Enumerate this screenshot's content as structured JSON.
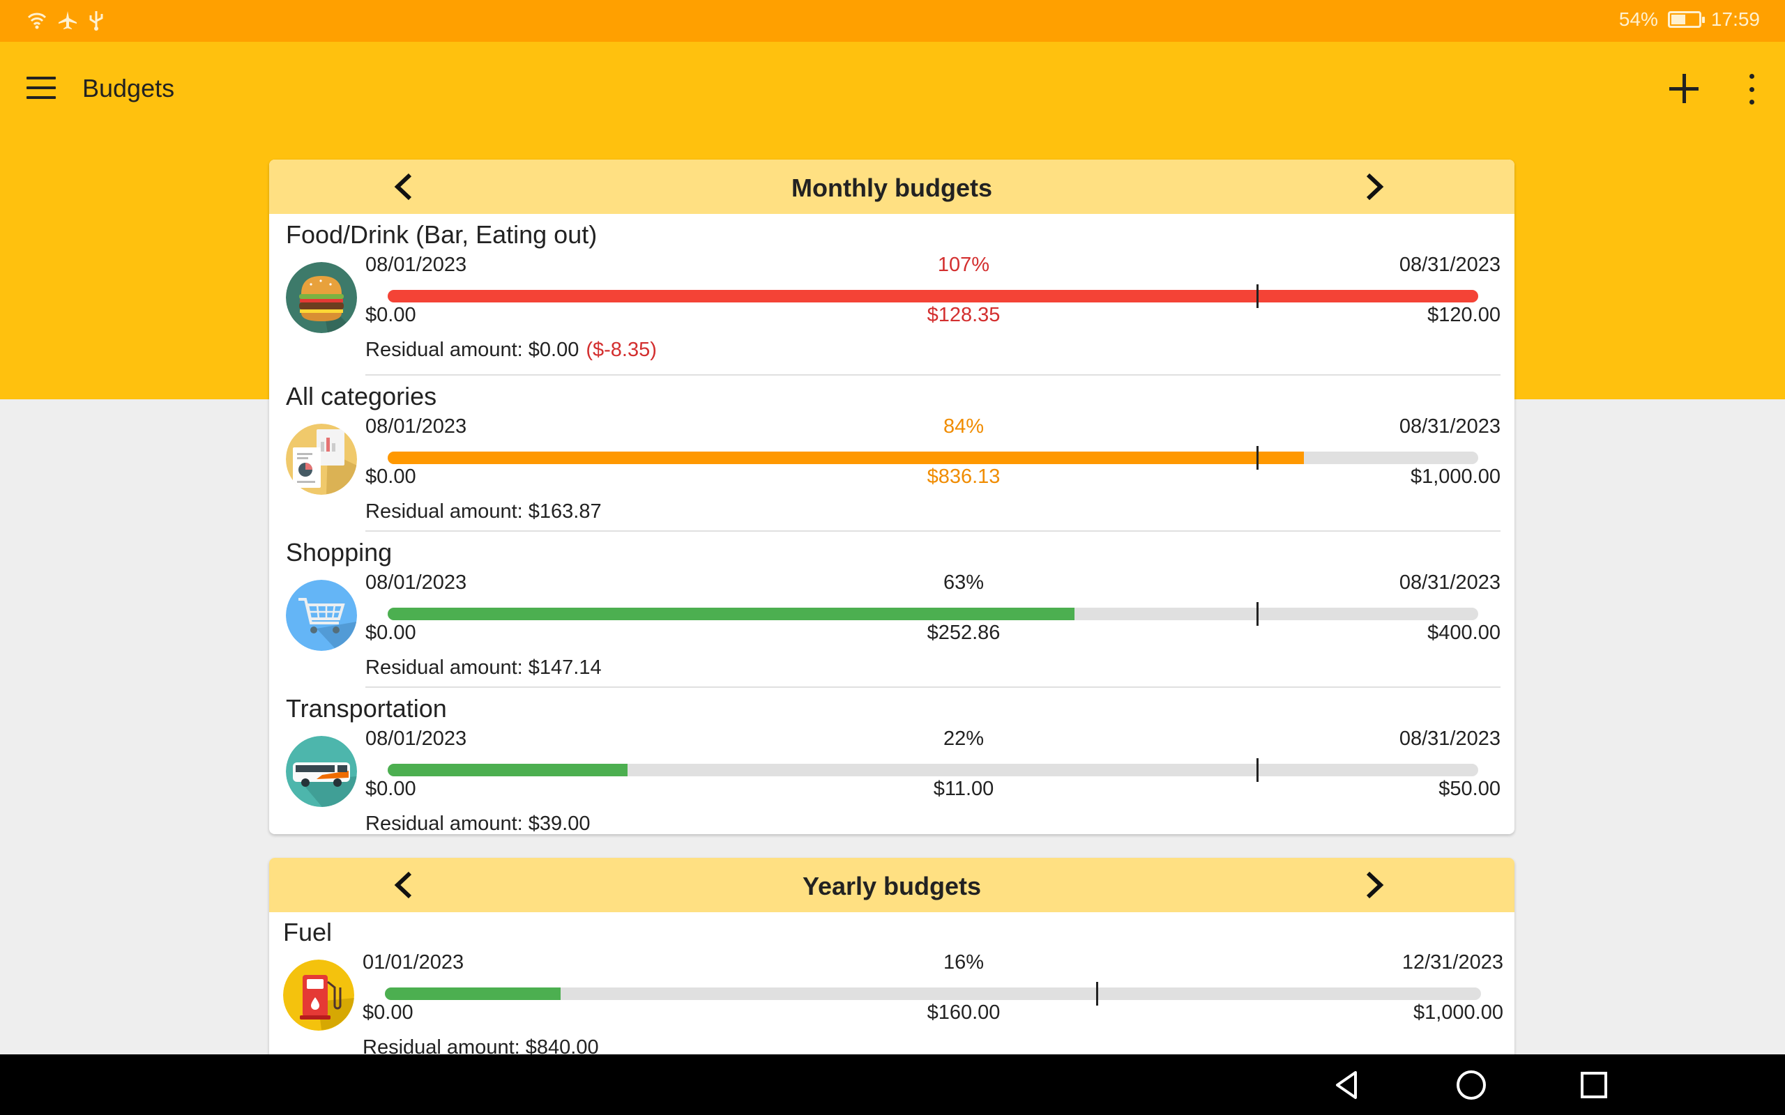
{
  "status_bar": {
    "battery_percent": "54%",
    "battery_level": 0.54,
    "time": "17:59",
    "icons": [
      "wifi-icon",
      "airplane-mode-icon",
      "usb-icon",
      "battery-charging-icon"
    ]
  },
  "app_bar": {
    "title": "Budgets",
    "icons": [
      "menu-icon",
      "add-icon",
      "more-vert-icon"
    ]
  },
  "colors": {
    "status_bar": "#ffa000",
    "app_bar": "#ffc10e",
    "card_header": "#ffe082",
    "over_budget": "#f44336",
    "warning": "#ff9800",
    "ok": "#4caf50",
    "over_text": "#d32f2f",
    "warning_text": "#f08c00"
  },
  "monthly": {
    "title": "Monthly budgets",
    "items": [
      {
        "name": "Food/Drink (Bar, Eating out)",
        "icon": "burger-icon",
        "start_date": "08/01/2023",
        "end_date": "08/31/2023",
        "percent": "107%",
        "progress": 1.0,
        "min": "$0.00",
        "spent": "$128.35",
        "max": "$120.00",
        "residual_label": "Residual amount:",
        "residual": "$0.00",
        "residual_over": "($-8.35)",
        "status": "over"
      },
      {
        "name": "All categories",
        "icon": "report-documents-icon",
        "start_date": "08/01/2023",
        "end_date": "08/31/2023",
        "percent": "84%",
        "progress": 0.84,
        "min": "$0.00",
        "spent": "$836.13",
        "max": "$1,000.00",
        "residual_label": "Residual amount:",
        "residual": "$163.87",
        "status": "warning"
      },
      {
        "name": "Shopping",
        "icon": "shopping-cart-icon",
        "start_date": "08/01/2023",
        "end_date": "08/31/2023",
        "percent": "63%",
        "progress": 0.63,
        "min": "$0.00",
        "spent": "$252.86",
        "max": "$400.00",
        "residual_label": "Residual amount:",
        "residual": "$147.14",
        "status": "ok"
      },
      {
        "name": "Transportation",
        "icon": "bus-icon",
        "start_date": "08/01/2023",
        "end_date": "08/31/2023",
        "percent": "22%",
        "progress": 0.22,
        "min": "$0.00",
        "spent": "$11.00",
        "max": "$50.00",
        "residual_label": "Residual amount:",
        "residual": "$39.00",
        "status": "ok"
      }
    ]
  },
  "yearly": {
    "title": "Yearly budgets",
    "items": [
      {
        "name": "Fuel",
        "icon": "fuel-pump-icon",
        "start_date": "01/01/2023",
        "end_date": "12/31/2023",
        "percent": "16%",
        "progress": 0.16,
        "min": "$0.00",
        "spent": "$160.00",
        "max": "$1,000.00",
        "residual_label": "Residual amount:",
        "residual": "$840.00",
        "status": "ok"
      }
    ]
  },
  "nav_bar": {
    "icons": [
      "back-icon",
      "home-icon",
      "recents-icon"
    ]
  }
}
